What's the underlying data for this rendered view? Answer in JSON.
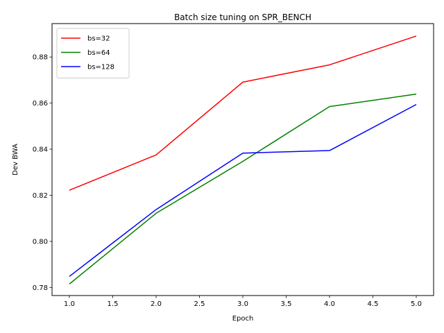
{
  "chart_data": {
    "type": "line",
    "title": "Batch size tuning on SPR_BENCH",
    "xlabel": "Epoch",
    "ylabel": "Dev BWA",
    "x": [
      1,
      2,
      3,
      4,
      5
    ],
    "xlim": [
      0.8,
      5.2
    ],
    "ylim": [
      0.7765,
      0.8945
    ],
    "xticks": [
      "1.0",
      "1.5",
      "2.0",
      "2.5",
      "3.0",
      "3.5",
      "4.0",
      "4.5",
      "5.0"
    ],
    "yticks": [
      "0.78",
      "0.80",
      "0.82",
      "0.84",
      "0.86",
      "0.88"
    ],
    "grid": false,
    "legend_position": "upper-left",
    "series": [
      {
        "name": "bs=32",
        "color": "#ff0000",
        "values": [
          0.8222,
          0.8375,
          0.8691,
          0.8766,
          0.8891
        ]
      },
      {
        "name": "bs=64",
        "color": "#008000",
        "values": [
          0.7815,
          0.8122,
          0.8347,
          0.8585,
          0.8639
        ]
      },
      {
        "name": "bs=128",
        "color": "#0000ff",
        "values": [
          0.7848,
          0.8138,
          0.8383,
          0.8394,
          0.8594
        ]
      }
    ]
  }
}
